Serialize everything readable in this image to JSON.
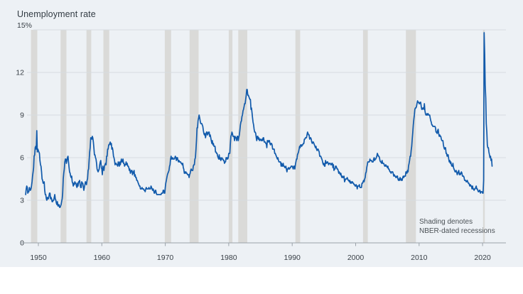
{
  "chart_data": {
    "type": "line",
    "title": "Unemployment rate",
    "annotation": {
      "line1": "Shading denotes",
      "line2": "NBER-dated recessions"
    },
    "legend_position": "none",
    "grid": "horizontal",
    "y_axis": {
      "min": 0,
      "max": 15,
      "ticks": [
        0,
        3,
        6,
        9,
        12,
        15
      ],
      "top_label": "15%"
    },
    "x_axis": {
      "start": 1948,
      "end": 2021.6,
      "ticks": [
        1950,
        1960,
        1970,
        1980,
        1990,
        2000,
        2010,
        2020
      ]
    },
    "recessions": [
      [
        1948.83,
        1949.83
      ],
      [
        1953.5,
        1954.42
      ],
      [
        1957.58,
        1958.33
      ],
      [
        1960.25,
        1961.17
      ],
      [
        1969.92,
        1970.92
      ],
      [
        1973.83,
        1975.25
      ],
      [
        1980.0,
        1980.58
      ],
      [
        1981.5,
        1982.92
      ],
      [
        1990.5,
        1991.25
      ],
      [
        2001.17,
        2001.92
      ],
      [
        2007.92,
        2009.5
      ],
      [
        2020.08,
        2020.33
      ]
    ],
    "colors": {
      "line": "#115aab",
      "band": "#dadad8",
      "grid": "#d7dce1",
      "axis": "#9aa2a9",
      "background": "#edf1f5",
      "text": "#3a4148",
      "title": "#333c44",
      "note": "#4b5156"
    },
    "series": [
      {
        "name": "Unemployment rate",
        "frequency": "monthly",
        "start_year": 1948,
        "start_month": 1,
        "unit": "percent",
        "values": [
          3.4,
          3.8,
          4.0,
          3.9,
          3.5,
          3.6,
          3.6,
          3.9,
          3.8,
          3.7,
          3.8,
          4.0,
          4.3,
          4.7,
          5.0,
          5.3,
          6.1,
          6.2,
          6.7,
          6.8,
          6.6,
          7.9,
          6.4,
          6.6,
          6.5,
          6.4,
          6.3,
          5.8,
          5.5,
          5.4,
          5.0,
          4.5,
          4.4,
          4.2,
          4.2,
          4.3,
          3.7,
          3.4,
          3.4,
          3.1,
          3.0,
          3.2,
          3.1,
          3.1,
          3.3,
          3.5,
          3.5,
          3.1,
          3.2,
          3.1,
          2.9,
          2.9,
          3.0,
          3.0,
          3.2,
          3.4,
          3.1,
          3.0,
          2.8,
          2.7,
          2.9,
          2.6,
          2.6,
          2.7,
          2.5,
          2.5,
          2.6,
          2.7,
          2.9,
          3.1,
          3.5,
          4.5,
          4.9,
          5.2,
          5.7,
          5.9,
          5.9,
          5.6,
          5.8,
          6.0,
          6.1,
          5.7,
          5.3,
          5.0,
          4.9,
          4.7,
          4.6,
          4.7,
          4.3,
          4.2,
          4.0,
          4.2,
          4.1,
          4.3,
          4.2,
          4.2,
          4.0,
          3.9,
          4.2,
          4.0,
          4.3,
          4.3,
          4.4,
          4.1,
          3.9,
          3.9,
          4.3,
          4.2,
          4.2,
          3.9,
          3.7,
          3.9,
          4.1,
          4.3,
          4.2,
          4.1,
          4.4,
          4.5,
          5.1,
          5.2,
          5.8,
          6.4,
          6.7,
          7.4,
          7.4,
          7.3,
          7.5,
          7.4,
          7.1,
          6.7,
          6.2,
          6.2,
          6.0,
          5.9,
          5.6,
          5.2,
          5.1,
          5.0,
          5.1,
          5.2,
          5.5,
          5.7,
          5.8,
          5.3,
          5.2,
          4.8,
          5.4,
          5.2,
          5.1,
          5.4,
          5.5,
          5.6,
          5.5,
          6.1,
          6.1,
          6.6,
          6.6,
          6.9,
          6.9,
          7.0,
          7.1,
          6.9,
          7.0,
          6.6,
          6.7,
          6.5,
          6.1,
          6.0,
          5.8,
          5.5,
          5.6,
          5.6,
          5.5,
          5.5,
          5.4,
          5.7,
          5.6,
          5.4,
          5.7,
          5.5,
          5.7,
          5.9,
          5.7,
          5.7,
          5.9,
          5.6,
          5.6,
          5.4,
          5.5,
          5.5,
          5.7,
          5.5,
          5.6,
          5.4,
          5.4,
          5.3,
          5.1,
          5.2,
          4.9,
          5.0,
          5.1,
          5.1,
          4.8,
          5.0,
          4.9,
          5.1,
          4.7,
          4.8,
          4.6,
          4.6,
          4.4,
          4.4,
          4.3,
          4.2,
          4.1,
          4.0,
          4.0,
          3.8,
          3.8,
          3.8,
          3.9,
          3.8,
          3.8,
          3.8,
          3.7,
          3.7,
          3.6,
          3.8,
          3.9,
          3.8,
          3.8,
          3.8,
          3.8,
          3.9,
          3.8,
          3.8,
          3.8,
          4.0,
          3.9,
          3.8,
          3.7,
          3.8,
          3.7,
          3.5,
          3.5,
          3.7,
          3.7,
          3.5,
          3.4,
          3.4,
          3.4,
          3.4,
          3.4,
          3.4,
          3.4,
          3.4,
          3.4,
          3.5,
          3.5,
          3.5,
          3.7,
          3.7,
          3.5,
          3.5,
          3.9,
          4.2,
          4.4,
          4.6,
          4.8,
          4.9,
          5.0,
          5.1,
          5.4,
          5.5,
          5.9,
          6.1,
          5.9,
          5.9,
          6.0,
          5.9,
          5.9,
          5.9,
          6.0,
          6.1,
          6.0,
          5.8,
          6.0,
          6.0,
          5.8,
          5.7,
          5.8,
          5.7,
          5.7,
          5.7,
          5.6,
          5.6,
          5.5,
          5.6,
          5.3,
          5.2,
          4.9,
          5.0,
          4.9,
          5.0,
          4.9,
          4.9,
          4.8,
          4.8,
          4.8,
          4.6,
          4.8,
          4.9,
          5.1,
          5.2,
          5.1,
          5.1,
          5.1,
          5.4,
          5.5,
          5.5,
          5.9,
          6.0,
          6.6,
          7.2,
          8.1,
          8.1,
          8.6,
          8.8,
          9.0,
          8.8,
          8.6,
          8.4,
          8.4,
          8.4,
          8.3,
          8.2,
          7.9,
          7.7,
          7.6,
          7.7,
          7.4,
          7.6,
          7.8,
          7.8,
          7.6,
          7.7,
          7.8,
          7.8,
          7.5,
          7.6,
          7.4,
          7.2,
          7.0,
          7.2,
          6.9,
          7.0,
          6.8,
          6.8,
          6.8,
          6.4,
          6.4,
          6.3,
          6.3,
          6.1,
          6.0,
          5.9,
          6.2,
          5.9,
          6.0,
          5.8,
          5.9,
          6.0,
          5.9,
          5.9,
          5.8,
          5.8,
          5.6,
          5.7,
          5.7,
          6.0,
          5.9,
          6.0,
          5.9,
          6.0,
          6.3,
          6.3,
          6.3,
          6.9,
          7.5,
          7.6,
          7.8,
          7.7,
          7.5,
          7.5,
          7.5,
          7.2,
          7.5,
          7.4,
          7.4,
          7.2,
          7.5,
          7.5,
          7.2,
          7.4,
          7.6,
          7.9,
          8.3,
          8.5,
          8.6,
          8.9,
          9.0,
          9.3,
          9.4,
          9.6,
          9.8,
          9.8,
          10.1,
          10.4,
          10.8,
          10.8,
          10.4,
          10.4,
          10.3,
          10.2,
          10.1,
          10.1,
          9.4,
          9.5,
          9.2,
          8.8,
          8.5,
          8.3,
          8.0,
          7.8,
          7.8,
          7.7,
          7.4,
          7.2,
          7.5,
          7.5,
          7.3,
          7.4,
          7.2,
          7.3,
          7.3,
          7.2,
          7.2,
          7.3,
          7.2,
          7.4,
          7.4,
          7.1,
          7.1,
          7.1,
          7.0,
          7.0,
          6.7,
          7.2,
          7.2,
          7.1,
          7.2,
          7.2,
          7.0,
          6.9,
          7.0,
          7.0,
          6.9,
          6.6,
          6.6,
          6.6,
          6.6,
          6.3,
          6.3,
          6.2,
          6.1,
          6.0,
          5.9,
          6.0,
          5.8,
          5.7,
          5.7,
          5.7,
          5.7,
          5.4,
          5.6,
          5.4,
          5.4,
          5.6,
          5.4,
          5.4,
          5.3,
          5.3,
          5.4,
          5.2,
          5.0,
          5.2,
          5.2,
          5.3,
          5.2,
          5.2,
          5.3,
          5.3,
          5.4,
          5.4,
          5.4,
          5.3,
          5.2,
          5.4,
          5.4,
          5.2,
          5.5,
          5.7,
          5.9,
          5.9,
          6.2,
          6.3,
          6.4,
          6.6,
          6.8,
          6.7,
          6.9,
          6.9,
          6.8,
          6.9,
          6.9,
          7.0,
          7.0,
          7.3,
          7.3,
          7.4,
          7.4,
          7.4,
          7.6,
          7.8,
          7.7,
          7.6,
          7.6,
          7.3,
          7.4,
          7.4,
          7.3,
          7.1,
          7.0,
          7.1,
          7.1,
          7.0,
          6.9,
          6.8,
          6.7,
          6.8,
          6.6,
          6.5,
          6.6,
          6.6,
          6.5,
          6.4,
          6.1,
          6.1,
          6.1,
          6.0,
          5.9,
          5.8,
          5.6,
          5.5,
          5.6,
          5.4,
          5.4,
          5.8,
          5.6,
          5.6,
          5.7,
          5.7,
          5.6,
          5.5,
          5.6,
          5.6,
          5.6,
          5.5,
          5.5,
          5.6,
          5.6,
          5.3,
          5.5,
          5.1,
          5.2,
          5.2,
          5.4,
          5.4,
          5.3,
          5.2,
          5.2,
          5.1,
          4.9,
          5.0,
          4.9,
          4.8,
          4.9,
          4.7,
          4.6,
          4.7,
          4.6,
          4.6,
          4.7,
          4.3,
          4.4,
          4.5,
          4.5,
          4.5,
          4.6,
          4.5,
          4.4,
          4.4,
          4.3,
          4.4,
          4.2,
          4.3,
          4.2,
          4.3,
          4.3,
          4.2,
          4.2,
          4.1,
          4.1,
          4.0,
          4.0,
          4.1,
          4.0,
          3.8,
          4.0,
          4.0,
          4.0,
          4.1,
          3.9,
          3.9,
          3.9,
          3.9,
          4.2,
          4.2,
          4.3,
          4.4,
          4.3,
          4.5,
          4.6,
          4.9,
          5.0,
          5.3,
          5.5,
          5.7,
          5.7,
          5.7,
          5.7,
          5.9,
          5.8,
          5.8,
          5.8,
          5.7,
          5.7,
          5.7,
          5.9,
          6.0,
          5.8,
          5.9,
          5.9,
          6.0,
          6.1,
          6.3,
          6.2,
          6.1,
          6.1,
          6.0,
          5.8,
          5.7,
          5.7,
          5.6,
          5.8,
          5.6,
          5.6,
          5.6,
          5.5,
          5.4,
          5.4,
          5.5,
          5.4,
          5.4,
          5.3,
          5.4,
          5.2,
          5.2,
          5.1,
          5.0,
          5.0,
          4.9,
          5.0,
          5.0,
          5.0,
          4.9,
          4.7,
          4.8,
          4.7,
          4.7,
          4.6,
          4.6,
          4.7,
          4.7,
          4.5,
          4.4,
          4.5,
          4.4,
          4.6,
          4.5,
          4.4,
          4.5,
          4.4,
          4.6,
          4.7,
          4.6,
          4.7,
          4.7,
          4.7,
          5.0,
          5.0,
          4.9,
          5.1,
          5.0,
          5.4,
          5.6,
          5.8,
          6.1,
          6.1,
          6.5,
          6.8,
          7.3,
          7.8,
          8.3,
          8.7,
          9.0,
          9.4,
          9.5,
          9.5,
          9.6,
          9.8,
          10.0,
          9.9,
          9.9,
          9.8,
          9.8,
          9.9,
          9.9,
          9.6,
          9.4,
          9.4,
          9.5,
          9.5,
          9.4,
          9.8,
          9.3,
          9.1,
          9.0,
          9.0,
          9.1,
          9.0,
          9.1,
          9.0,
          9.0,
          9.0,
          8.8,
          8.6,
          8.5,
          8.3,
          8.3,
          8.2,
          8.2,
          8.2,
          8.2,
          8.2,
          8.1,
          7.8,
          7.8,
          7.7,
          7.9,
          8.0,
          7.7,
          7.5,
          7.6,
          7.5,
          7.5,
          7.3,
          7.2,
          7.2,
          7.2,
          6.9,
          6.7,
          6.6,
          6.7,
          6.7,
          6.3,
          6.3,
          6.1,
          6.2,
          6.2,
          5.9,
          5.7,
          5.8,
          5.6,
          5.7,
          5.5,
          5.4,
          5.4,
          5.6,
          5.3,
          5.2,
          5.1,
          5.0,
          5.0,
          5.1,
          5.0,
          4.8,
          4.9,
          5.0,
          5.1,
          4.8,
          4.9,
          4.8,
          4.9,
          5.0,
          4.9,
          4.7,
          4.7,
          4.7,
          4.6,
          4.4,
          4.4,
          4.4,
          4.3,
          4.3,
          4.4,
          4.3,
          4.2,
          4.2,
          4.1,
          4.0,
          4.1,
          4.0,
          4.0,
          3.8,
          4.0,
          3.8,
          3.8,
          3.7,
          3.8,
          3.8,
          3.9,
          4.0,
          3.8,
          3.8,
          3.7,
          3.6,
          3.6,
          3.7,
          3.7,
          3.5,
          3.6,
          3.6,
          3.6,
          3.5,
          3.5,
          4.4,
          14.8,
          13.3,
          11.1,
          10.2,
          8.4,
          7.8,
          6.9,
          6.7,
          6.7,
          6.4,
          6.2,
          6.0,
          6.1,
          5.8,
          5.9,
          5.4
        ]
      }
    ]
  }
}
